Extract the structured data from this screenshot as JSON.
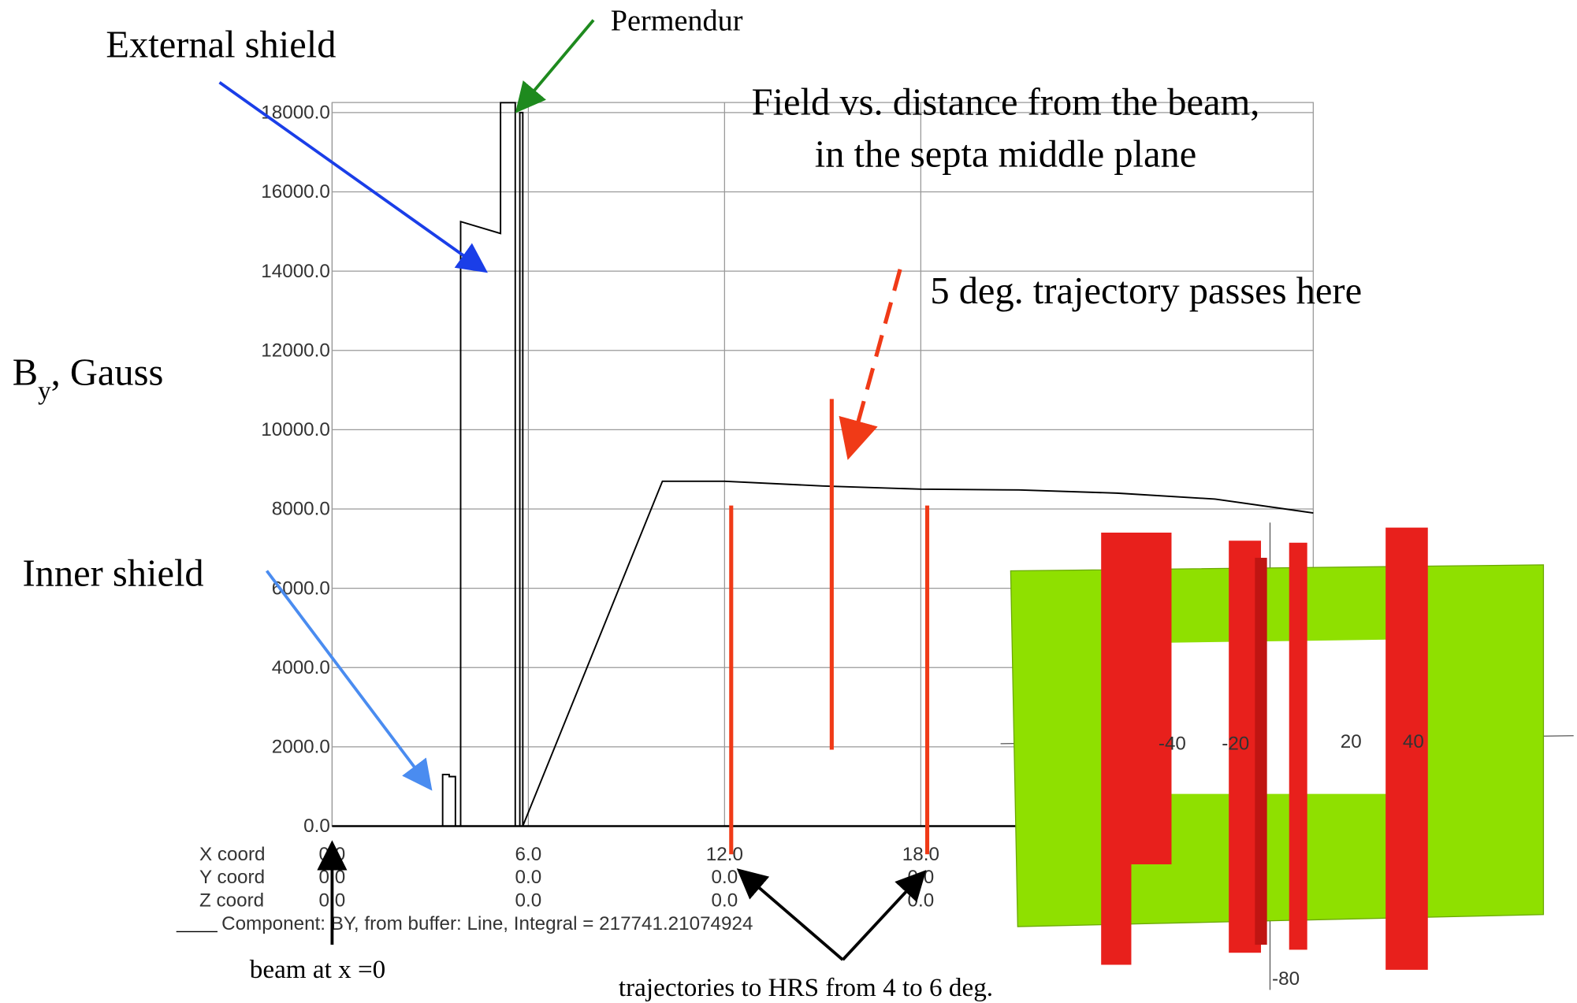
{
  "chart_data": {
    "type": "line",
    "title_lines": [
      "Field vs. distance from the beam,",
      "in the septa middle plane"
    ],
    "ylabel": {
      "main": "B",
      "sub": "y",
      "rest": ", Gauss"
    },
    "x": [
      0,
      3.38,
      3.38,
      3.58,
      3.58,
      3.77,
      3.77,
      3.93,
      3.93,
      5.15,
      5.15,
      5.6,
      5.6,
      5.74,
      5.74,
      5.83,
      5.83,
      10.1,
      12,
      15,
      18,
      21,
      24,
      27,
      30
    ],
    "series": [
      {
        "name": "Component: BY, from buffer: Line, Integral = 217741.21074924",
        "color": "#000000",
        "values": [
          0,
          0,
          1300,
          1300,
          1250,
          1250,
          0,
          0,
          15250,
          14950,
          18250,
          18250,
          0,
          0,
          18000,
          18000,
          0,
          8700,
          8700,
          8580,
          8500,
          8480,
          8400,
          8250,
          7900
        ]
      }
    ],
    "xlim": [
      0,
      30
    ],
    "ylim": [
      0,
      18000
    ],
    "xticks": [
      {
        "value": 0,
        "label": "0.0"
      },
      {
        "value": 6,
        "label": "6.0"
      },
      {
        "value": 12,
        "label": "12.0"
      },
      {
        "value": 18,
        "label": "18.0"
      }
    ],
    "yticks": [
      {
        "value": 0,
        "label": "0.0"
      },
      {
        "value": 2000,
        "label": "2000.0"
      },
      {
        "value": 4000,
        "label": "4000.0"
      },
      {
        "value": 6000,
        "label": "6000.0"
      },
      {
        "value": 8000,
        "label": "8000.0"
      },
      {
        "value": 10000,
        "label": "10000.0"
      },
      {
        "value": 12000,
        "label": "12000.0"
      },
      {
        "value": 14000,
        "label": "14000.0"
      },
      {
        "value": 16000,
        "label": "16000.0"
      },
      {
        "value": 18000,
        "label": "18000.0"
      }
    ],
    "grid": true,
    "coord_labels": [
      "X coord",
      "Y coord",
      "Z coord"
    ],
    "y_coord_values": [
      "0.0",
      "0.0",
      "0.0",
      "0.0"
    ],
    "z_coord_values": [
      "0.0",
      "0.0",
      "0.0",
      "0.0"
    ],
    "annotations": {
      "external": "External shield",
      "permendur": "Permendur",
      "inner": "Inner shield",
      "trajectory": "5 deg. trajectory passes here",
      "beam": "beam at x =0",
      "hrs": "trajectories to HRS from 4 to 6 deg."
    },
    "inset_labels": [
      "-40",
      "-20",
      "20",
      "40",
      "-80"
    ]
  }
}
